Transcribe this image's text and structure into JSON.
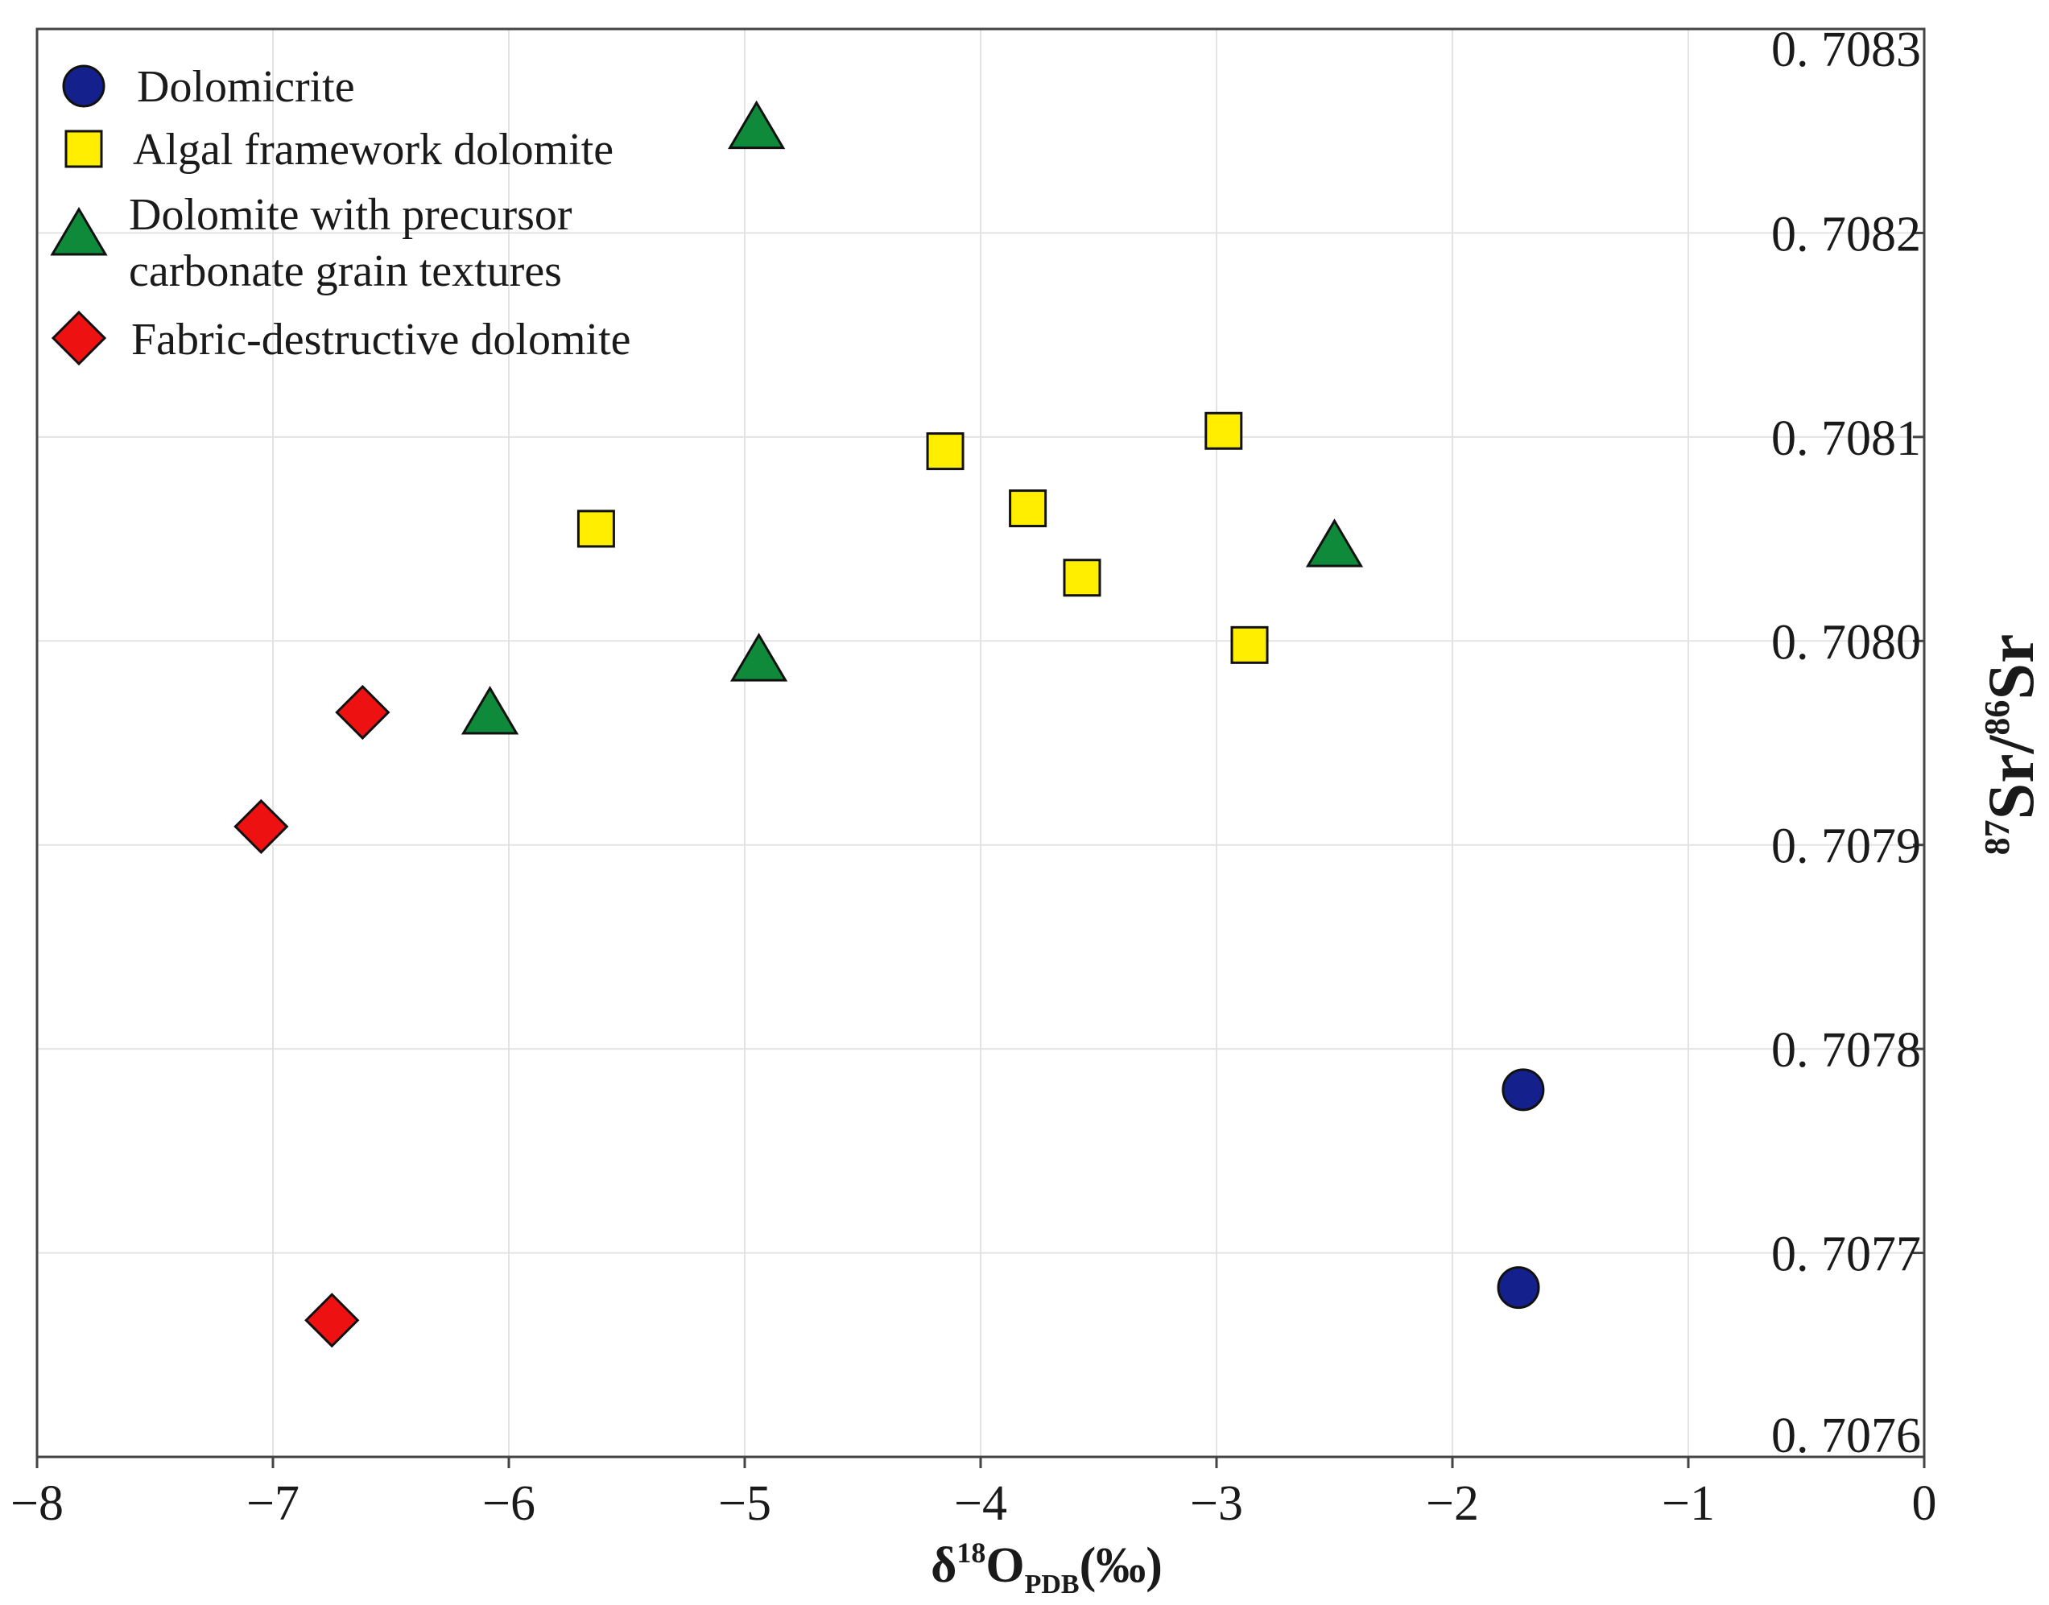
{
  "chart_data": {
    "type": "scatter",
    "title": "",
    "xlabel": {
      "delta": "δ",
      "sup": "18",
      "main": "O",
      "sub": "PDB",
      "unit": "(‰)"
    },
    "ylabel": {
      "sup1": "87",
      "main1": "Sr/",
      "sup2": "86",
      "main2": "Sr"
    },
    "xlim": [
      -8,
      0
    ],
    "ylim": [
      0.7076,
      0.7083
    ],
    "x_ticks": [
      -8,
      -7,
      -6,
      -5,
      -4,
      -3,
      -2,
      -1,
      0
    ],
    "x_tick_labels": [
      "−8",
      "−7",
      "−6",
      "−5",
      "−4",
      "−3",
      "−2",
      "−1",
      "0"
    ],
    "y_ticks": [
      0.7076,
      0.7077,
      0.7078,
      0.7079,
      0.708,
      0.7081,
      0.7082,
      0.7083
    ],
    "y_tick_labels": [
      "0. 7076",
      "0. 7077",
      "0. 7078",
      "0. 7079",
      "0. 7080",
      "0. 7081",
      "0. 7082",
      "0. 7083"
    ],
    "grid": true,
    "legend_position": "top-left",
    "series": [
      {
        "name": "Dolomicrite",
        "marker": "circle",
        "color": "#14208c",
        "points": [
          {
            "x": -1.7,
            "y": 0.70778
          },
          {
            "x": -1.72,
            "y": 0.707683
          }
        ]
      },
      {
        "name": "Algal framework dolomite",
        "marker": "square",
        "color": "#ffee00",
        "points": [
          {
            "x": -5.63,
            "y": 0.708055
          },
          {
            "x": -4.15,
            "y": 0.708093
          },
          {
            "x": -3.8,
            "y": 0.708065
          },
          {
            "x": -3.57,
            "y": 0.708031
          },
          {
            "x": -2.97,
            "y": 0.708103
          },
          {
            "x": -2.86,
            "y": 0.707998
          }
        ]
      },
      {
        "name": "Dolomite with precursor carbonate grain textures",
        "legend_lines": [
          "Dolomite with precursor",
          "carbonate grain textures"
        ],
        "marker": "triangle",
        "color": "#0e8a3a",
        "points": [
          {
            "x": -4.95,
            "y": 0.708252
          },
          {
            "x": -2.5,
            "y": 0.708047
          },
          {
            "x": -4.94,
            "y": 0.707991
          },
          {
            "x": -6.08,
            "y": 0.707965
          }
        ]
      },
      {
        "name": "Fabric-destructive dolomite",
        "marker": "diamond",
        "color": "#ee1111",
        "points": [
          {
            "x": -6.62,
            "y": 0.707965
          },
          {
            "x": -7.05,
            "y": 0.707909
          },
          {
            "x": -6.75,
            "y": 0.707667
          }
        ]
      }
    ]
  }
}
